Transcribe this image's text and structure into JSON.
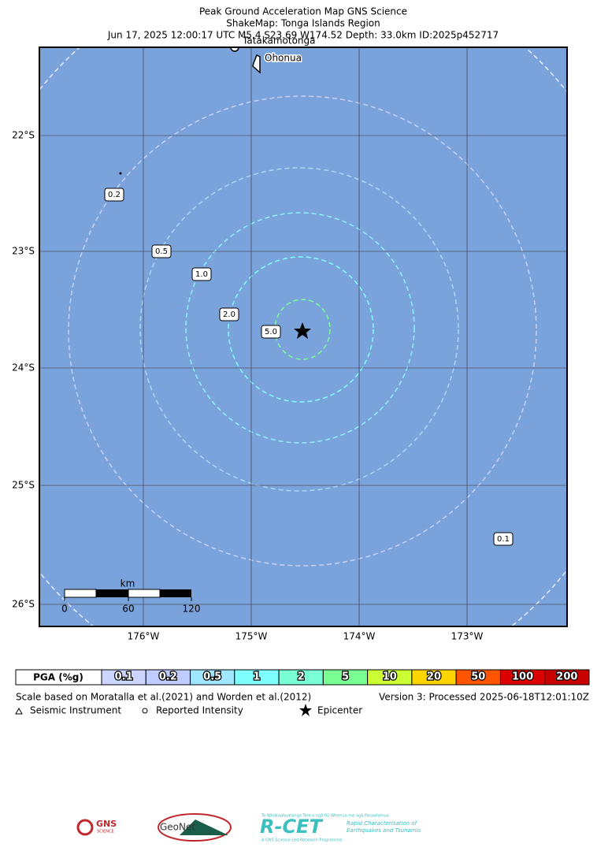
{
  "header": {
    "lines": [
      "Peak Ground Acceleration Map GNS Science",
      "ShakeMap: Tonga Islands Region",
      "Jun 17, 2025 12:00:17 UTC M5.4 S23.69 W174.52 Depth: 33.0km ID:2025p452717"
    ]
  },
  "map": {
    "lat_labels": [
      "22°S",
      "23°S",
      "24°S",
      "25°S",
      "26°S"
    ],
    "lon_labels": [
      "176°W",
      "175°W",
      "174°W",
      "173°W"
    ],
    "places": [
      "Tatakamotonga",
      "Ohonua"
    ],
    "contour_labels": [
      "0.1",
      "0.2",
      "0.5",
      "1.0",
      "2.0",
      "5.0"
    ],
    "scale_bar": {
      "unit": "km",
      "ticks": [
        "0",
        "60",
        "120"
      ]
    }
  },
  "legend": {
    "title": "PGA (%g)",
    "bins": [
      "0.1",
      "0.2",
      "0.5",
      "1",
      "2",
      "5",
      "10",
      "20",
      "50",
      "100",
      "200"
    ],
    "colors": [
      "#ccd5ff",
      "#bfccff",
      "#a0e6ff",
      "#80ffff",
      "#7affd4",
      "#7aff93",
      "#ccff33",
      "#ffd500",
      "#ff5500",
      "#dd0000",
      "#c80000"
    ]
  },
  "notes": {
    "scale": "Scale based on Moratalla et al.(2021) and Worden et al.(2012)",
    "version": "Version 3: Processed 2025-06-18T12:01:10Z",
    "symbols": [
      "Seismic Instrument",
      "Reported Intensity",
      "Epicenter"
    ]
  },
  "logos": {
    "gns": "GNS",
    "gns_sub": "SCIENCE",
    "geonet": "GeoNet",
    "rcet": "R-CET",
    "rcet_top": "Te Whakaahuatanga Tere o ngā Rū Whenua me ngā Parawhenua",
    "rcet_line1": "Rapid Characterisation of",
    "rcet_line2": "Earthquakes and Tsunamis",
    "rcet_bottom": "A GNS Science Led Research Programme"
  }
}
